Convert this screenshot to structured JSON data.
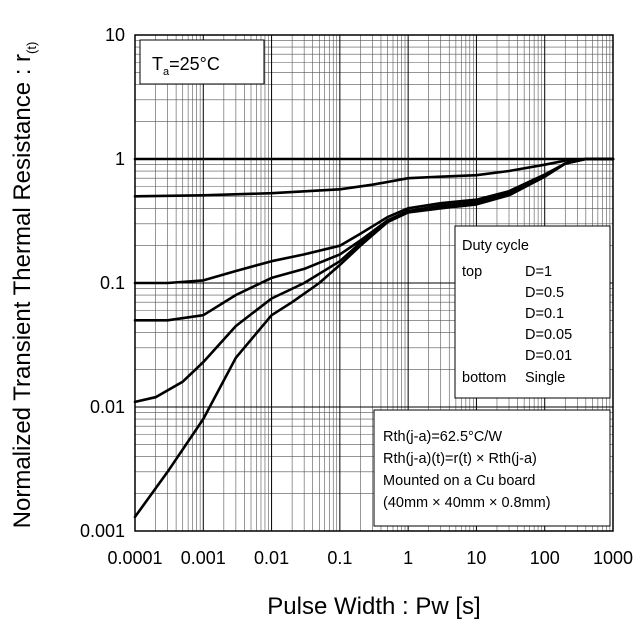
{
  "chart_data": {
    "type": "line",
    "xlabel": "Pulse Width : Pw [s]",
    "ylabel": "Normalized Transient Thermal Resistance : r",
    "ylabel_sub": "(t)",
    "x_scale": "log",
    "y_scale": "log",
    "xlim": [
      0.0001,
      1000
    ],
    "ylim": [
      0.001,
      10
    ],
    "grid": true,
    "x_ticks": [
      "0.0001",
      "0.001",
      "0.01",
      "0.1",
      "1",
      "10",
      "100",
      "1000"
    ],
    "y_ticks": [
      "0.001",
      "0.01",
      "0.1",
      "1",
      "10"
    ],
    "series": [
      {
        "name": "D=1",
        "x": [
          0.0001,
          0.001,
          0.01,
          0.1,
          1,
          10,
          100,
          1000
        ],
        "y": [
          1,
          1,
          1,
          1,
          1,
          1,
          1,
          1
        ]
      },
      {
        "name": "D=0.5",
        "x": [
          0.0001,
          0.001,
          0.01,
          0.1,
          0.3,
          1,
          3,
          10,
          30,
          100,
          200,
          400,
          1000
        ],
        "y": [
          0.5,
          0.51,
          0.53,
          0.57,
          0.62,
          0.7,
          0.72,
          0.74,
          0.8,
          0.9,
          0.97,
          1.0,
          1.0
        ]
      },
      {
        "name": "D=0.1",
        "x": [
          0.0001,
          0.0003,
          0.001,
          0.003,
          0.01,
          0.03,
          0.1,
          0.2,
          0.5,
          1,
          3,
          10,
          30,
          100,
          200,
          400,
          1000
        ],
        "y": [
          0.1,
          0.1,
          0.105,
          0.125,
          0.15,
          0.17,
          0.2,
          0.25,
          0.34,
          0.4,
          0.44,
          0.47,
          0.55,
          0.75,
          0.92,
          1.0,
          1.0
        ]
      },
      {
        "name": "D=0.05",
        "x": [
          0.0001,
          0.0003,
          0.001,
          0.003,
          0.01,
          0.03,
          0.1,
          0.2,
          0.5,
          1,
          3,
          10,
          30,
          100,
          200,
          400,
          1000
        ],
        "y": [
          0.05,
          0.05,
          0.055,
          0.08,
          0.11,
          0.13,
          0.17,
          0.22,
          0.32,
          0.38,
          0.42,
          0.45,
          0.53,
          0.73,
          0.92,
          1.0,
          1.0
        ]
      },
      {
        "name": "D=0.01",
        "x": [
          0.0001,
          0.0002,
          0.0005,
          0.001,
          0.003,
          0.01,
          0.03,
          0.1,
          0.2,
          0.5,
          1,
          3,
          10,
          30,
          100,
          200,
          400,
          1000
        ],
        "y": [
          0.011,
          0.012,
          0.016,
          0.023,
          0.045,
          0.075,
          0.1,
          0.15,
          0.21,
          0.32,
          0.38,
          0.41,
          0.44,
          0.52,
          0.72,
          0.92,
          1.0,
          1.0
        ]
      },
      {
        "name": "Single",
        "x": [
          0.0001,
          0.0003,
          0.001,
          0.003,
          0.01,
          0.02,
          0.05,
          0.1,
          0.2,
          0.5,
          1,
          3,
          10,
          30,
          100,
          200,
          400,
          1000
        ],
        "y": [
          0.0013,
          0.003,
          0.008,
          0.025,
          0.055,
          0.07,
          0.1,
          0.14,
          0.2,
          0.31,
          0.37,
          0.4,
          0.43,
          0.51,
          0.72,
          0.92,
          1.0,
          1.0
        ]
      }
    ],
    "annotations": {
      "temp_label_main": "T",
      "temp_label_sub": "a",
      "temp_label_rest": "=25°C",
      "legend_title": "Duty cycle",
      "legend_top_word": "top",
      "legend_bottom_word": "bottom",
      "legend_entries": [
        "D=1",
        "D=0.5",
        "D=0.1",
        "D=0.05",
        "D=0.01",
        "Single"
      ],
      "conditions": [
        "Rth(j-a)=62.5°C/W",
        "Rth(j-a)(t)=r(t) × Rth(j-a)",
        "Mounted on a Cu board",
        "(40mm × 40mm × 0.8mm)"
      ]
    }
  }
}
